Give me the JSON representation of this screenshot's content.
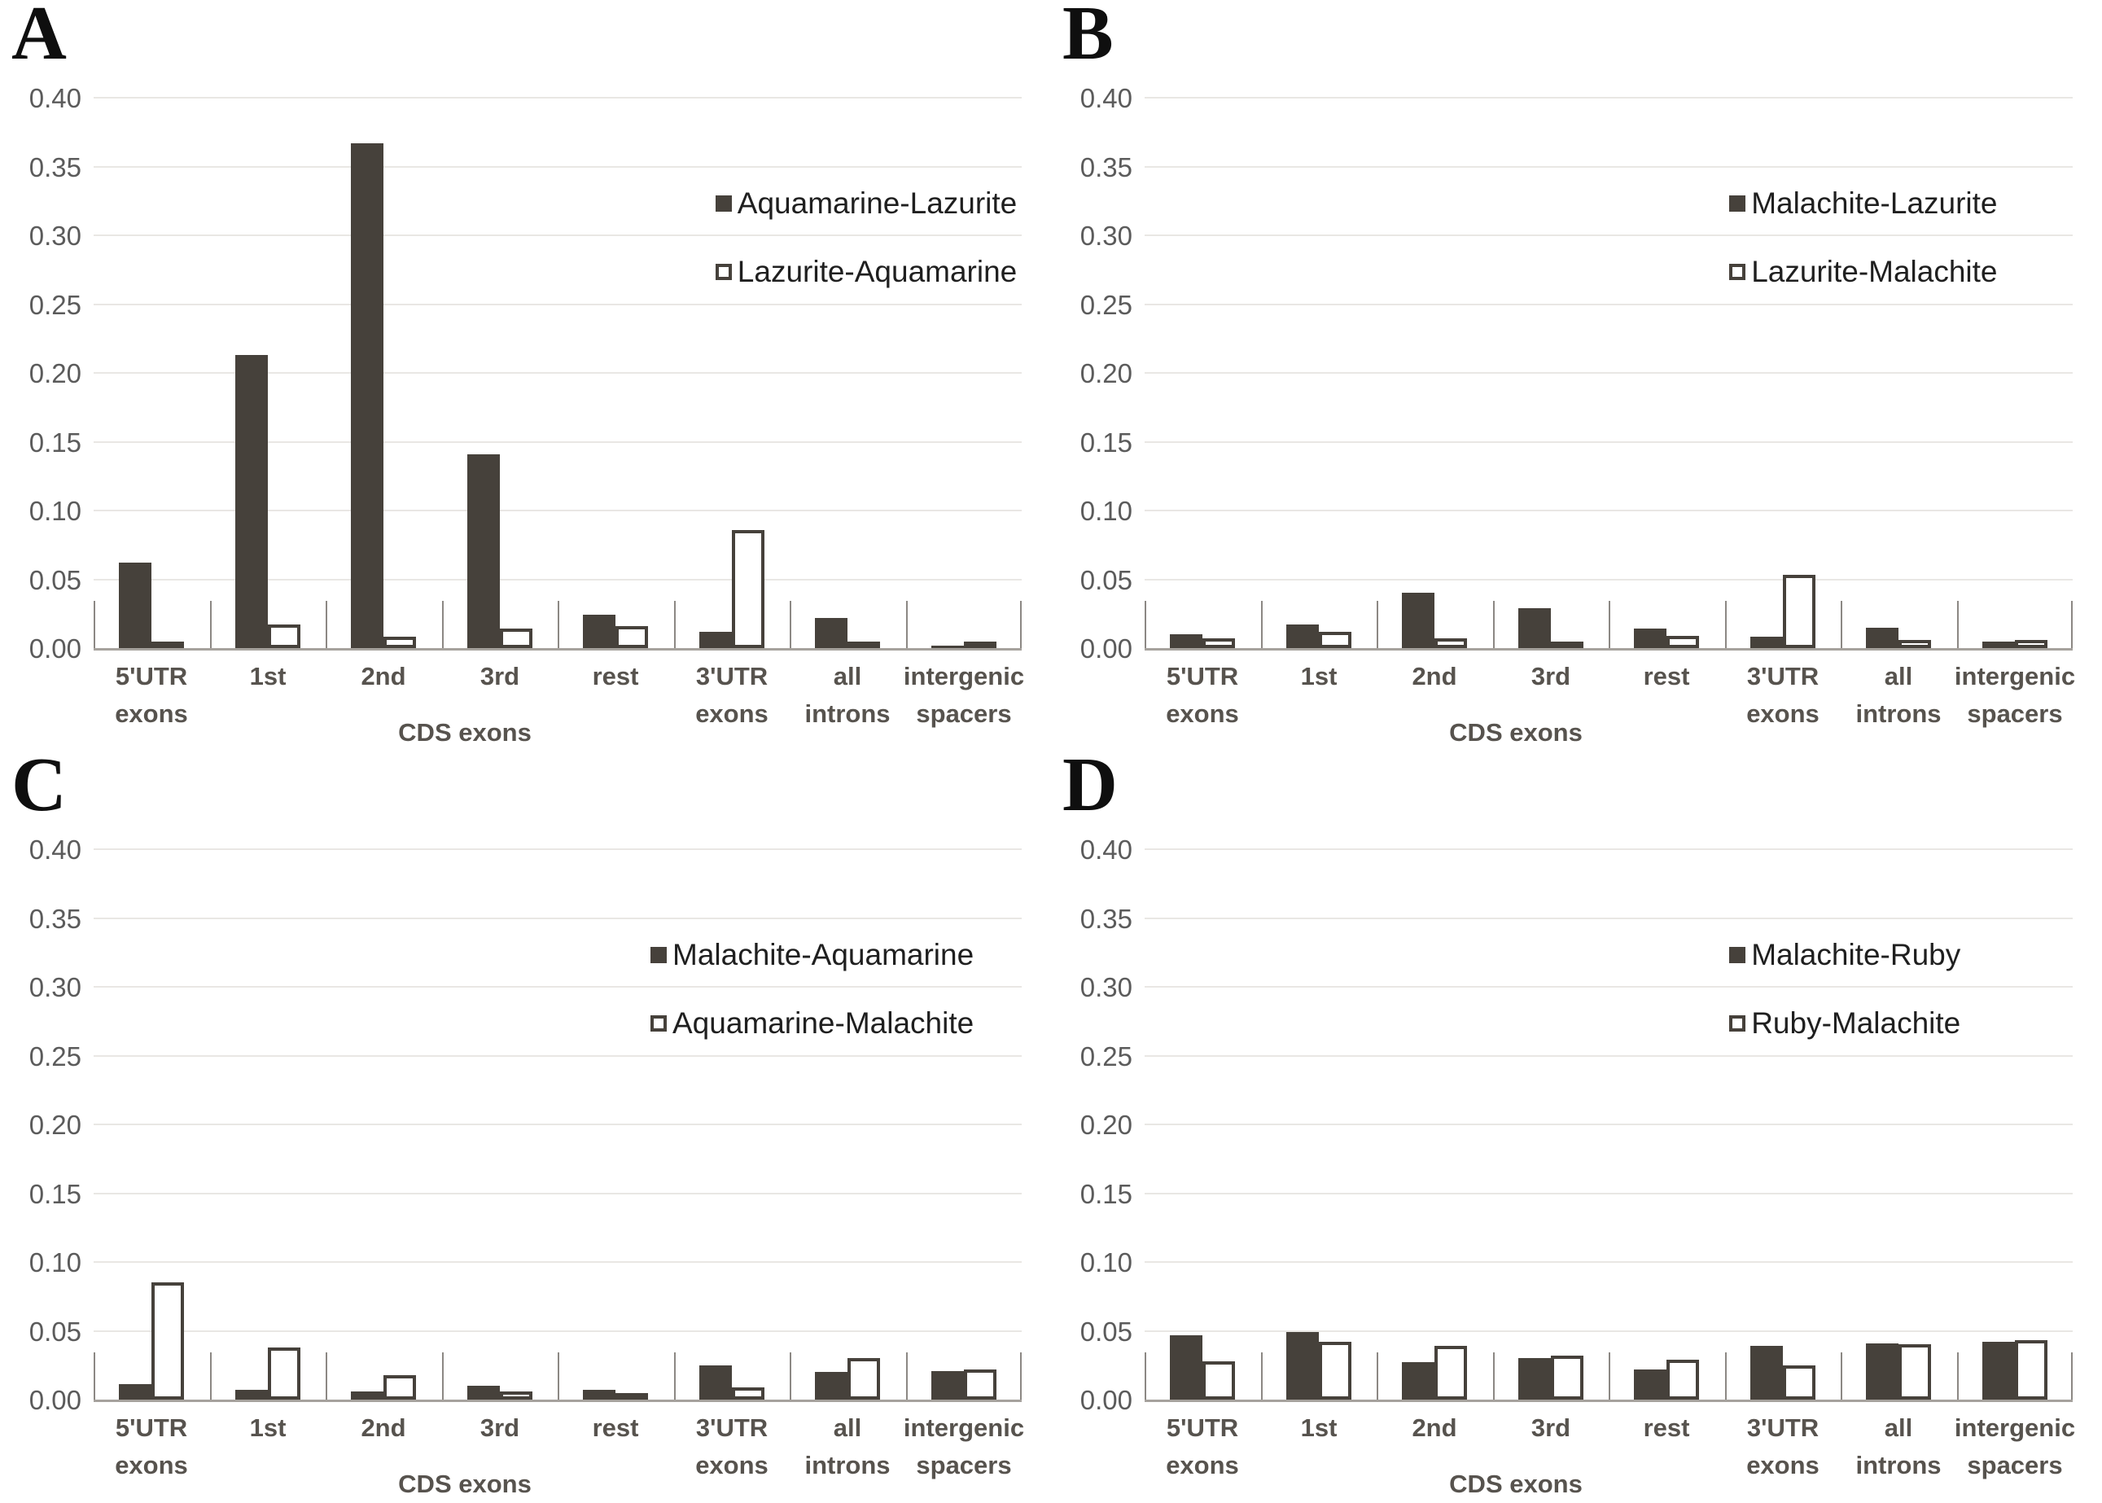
{
  "figure": {
    "background": "#ffffff",
    "y_axis": {
      "min": 0.0,
      "max": 0.4,
      "step": 0.05,
      "tick_labels": [
        "0.00",
        "0.05",
        "0.10",
        "0.15",
        "0.20",
        "0.25",
        "0.30",
        "0.35",
        "0.40"
      ]
    },
    "x_axis": {
      "category_label_lines": [
        [
          "5'UTR",
          "exons"
        ],
        [
          "1st"
        ],
        [
          "2nd"
        ],
        [
          "3rd"
        ],
        [
          "rest"
        ],
        [
          "3'UTR",
          "exons"
        ],
        [
          "all",
          "introns"
        ],
        [
          "intergenic",
          "spacers"
        ]
      ],
      "group_label": "CDS exons"
    },
    "colors": {
      "bar_fill": "#46413b",
      "bar_outline": "#46413b",
      "gridline": "#e9e7e4",
      "axis_line": "#a6a29d",
      "tick_line": "#8c8884",
      "axis_text": "#5b5b5b",
      "category_text": "#57534e",
      "legend_text": "#1f1f1f",
      "panel_letter": "#0f0f0f",
      "outlined_bar_fill": "#ffffff"
    }
  },
  "chart_data": [
    {
      "type": "bar",
      "panel": "A",
      "grid": true,
      "legend_position": "upper-right",
      "legend_left_pct": 67,
      "ylim": [
        0,
        0.4
      ],
      "ytick_step": 0.05,
      "categories": [
        "5'UTR exons",
        "1st CDS exons",
        "2nd CDS exons",
        "3rd CDS exons",
        "rest CDS exons",
        "3'UTR exons",
        "all introns",
        "intergenic spacers"
      ],
      "series": [
        {
          "name": "Aquamarine-Lazurite",
          "style": "filled",
          "values": [
            0.062,
            0.213,
            0.367,
            0.141,
            0.024,
            0.012,
            0.022,
            0.002
          ]
        },
        {
          "name": "Lazurite-Aquamarine",
          "style": "outlined",
          "values": [
            0.001,
            0.017,
            0.008,
            0.014,
            0.016,
            0.086,
            0.004,
            0.003
          ]
        }
      ]
    },
    {
      "type": "bar",
      "panel": "B",
      "grid": true,
      "legend_position": "upper-right",
      "legend_left_pct": 63,
      "ylim": [
        0,
        0.4
      ],
      "ytick_step": 0.05,
      "categories": [
        "5'UTR exons",
        "1st CDS exons",
        "2nd CDS exons",
        "3rd CDS exons",
        "rest CDS exons",
        "3'UTR exons",
        "all introns",
        "intergenic spacers"
      ],
      "series": [
        {
          "name": "Malachite-Lazurite",
          "style": "filled",
          "values": [
            0.01,
            0.017,
            0.04,
            0.029,
            0.014,
            0.008,
            0.015,
            0.005
          ]
        },
        {
          "name": "Lazurite-Malachite",
          "style": "outlined",
          "values": [
            0.007,
            0.012,
            0.007,
            0.002,
            0.009,
            0.053,
            0.006,
            0.006
          ]
        }
      ]
    },
    {
      "type": "bar",
      "panel": "C",
      "grid": true,
      "legend_position": "upper-right",
      "legend_left_pct": 60,
      "ylim": [
        0,
        0.4
      ],
      "ytick_step": 0.05,
      "categories": [
        "5'UTR exons",
        "1st CDS exons",
        "2nd CDS exons",
        "3rd CDS exons",
        "rest CDS exons",
        "3'UTR exons",
        "all introns",
        "intergenic spacers"
      ],
      "series": [
        {
          "name": "Malachite-Aquamarine",
          "style": "filled",
          "values": [
            0.011,
            0.007,
            0.006,
            0.01,
            0.007,
            0.025,
            0.02,
            0.021
          ]
        },
        {
          "name": "Aquamarine-Malachite",
          "style": "outlined",
          "values": [
            0.085,
            0.038,
            0.018,
            0.006,
            0.003,
            0.009,
            0.03,
            0.022
          ]
        }
      ]
    },
    {
      "type": "bar",
      "panel": "D",
      "grid": true,
      "legend_position": "upper-right",
      "legend_left_pct": 63,
      "ylim": [
        0,
        0.4
      ],
      "ytick_step": 0.05,
      "categories": [
        "5'UTR exons",
        "1st CDS exons",
        "2nd CDS exons",
        "3rd CDS exons",
        "rest CDS exons",
        "3'UTR exons",
        "all introns",
        "intergenic spacers"
      ],
      "series": [
        {
          "name": "Malachite-Ruby",
          "style": "filled",
          "values": [
            0.047,
            0.049,
            0.027,
            0.03,
            0.022,
            0.039,
            0.041,
            0.042
          ]
        },
        {
          "name": "Ruby-Malachite",
          "style": "outlined",
          "values": [
            0.028,
            0.042,
            0.039,
            0.032,
            0.029,
            0.025,
            0.04,
            0.043
          ]
        }
      ]
    }
  ]
}
